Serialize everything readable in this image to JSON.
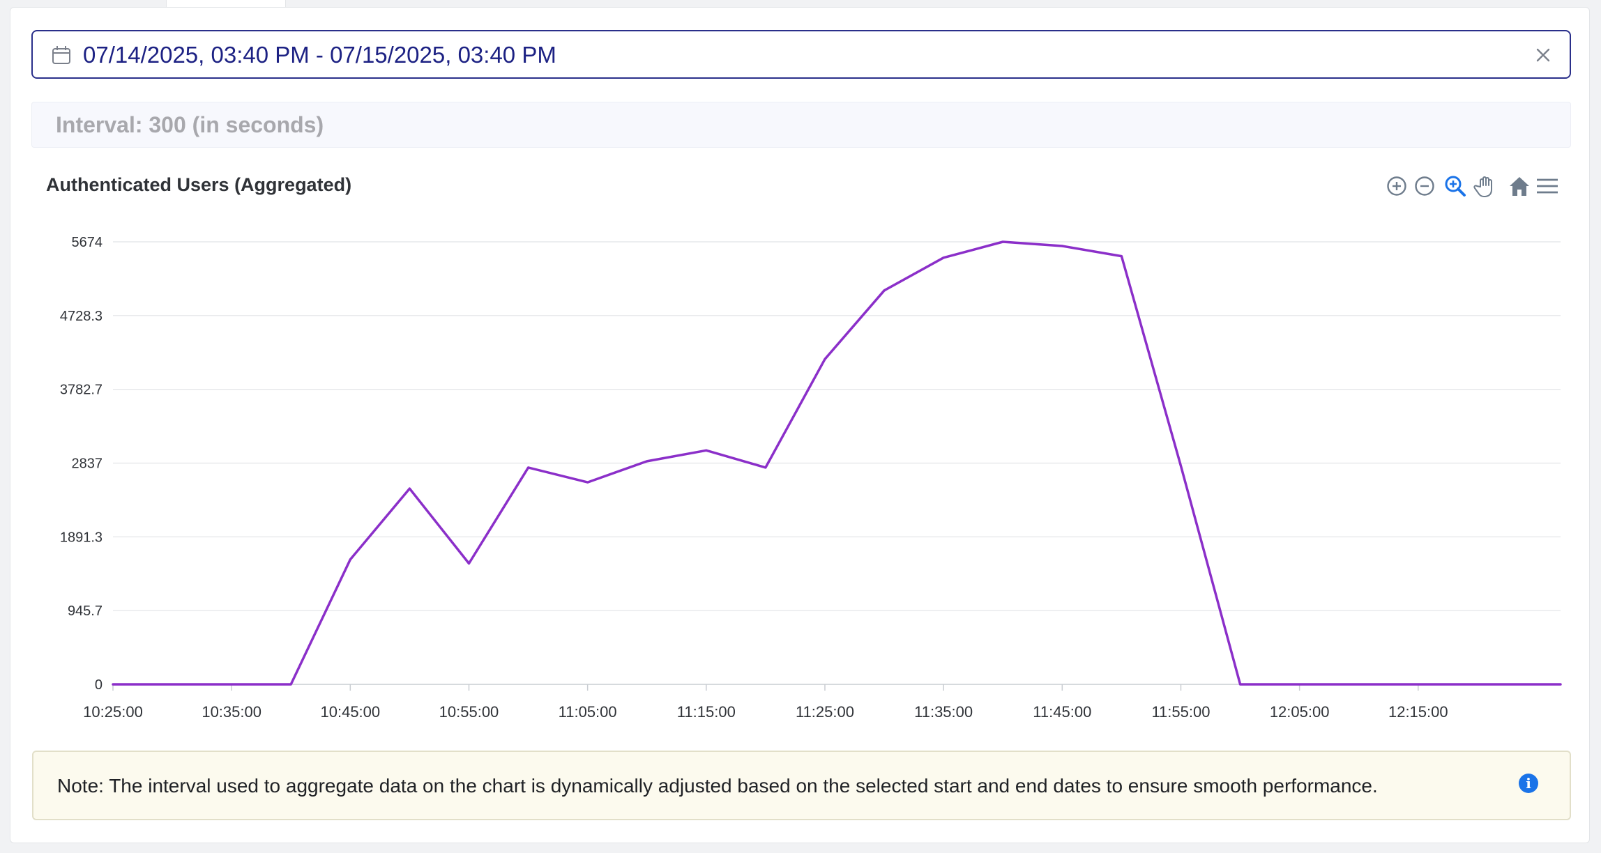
{
  "date_range": {
    "value": "07/14/2025, 03:40 PM - 07/15/2025, 03:40 PM",
    "icon": "calendar-icon",
    "clear_icon": "close-icon"
  },
  "interval": {
    "label": "Interval: 300 (in seconds)"
  },
  "chart_title": "Authenticated Users (Aggregated)",
  "toolbar": {
    "icons": [
      "zoom-in-icon",
      "zoom-out-icon",
      "selection-zoom-icon",
      "pan-hand-icon",
      "reset-home-icon",
      "menu-icon"
    ],
    "active_color": "#1a73e8",
    "icon_color": "#6e7c8c"
  },
  "colors": {
    "accent": "#1c2183",
    "series": "#8b2fc9",
    "note_bg": "#fcfaee"
  },
  "chart_data": {
    "type": "line",
    "title": "Authenticated Users (Aggregated)",
    "xlabel": "",
    "ylabel": "",
    "y_ticks": [
      "0",
      "945.7",
      "1891.3",
      "2837",
      "3782.7",
      "4728.3",
      "5674"
    ],
    "ylim": [
      0,
      5674
    ],
    "x_ticks": [
      "10:25:00",
      "10:35:00",
      "10:45:00",
      "10:55:00",
      "11:05:00",
      "11:15:00",
      "11:25:00",
      "11:35:00",
      "11:45:00",
      "11:55:00",
      "12:05:00",
      "12:15:00"
    ],
    "x_tick_minutes": [
      0,
      10,
      20,
      30,
      40,
      50,
      60,
      70,
      80,
      90,
      100,
      110
    ],
    "xlim_minutes": [
      0,
      122
    ],
    "grid": true,
    "series": [
      {
        "x_minutes": [
          0,
          5,
          10,
          15,
          20,
          25,
          30,
          35,
          40,
          45,
          50,
          55,
          60,
          65,
          70,
          75,
          80,
          85,
          90,
          95,
          100,
          105,
          110,
          115,
          122
        ],
        "values": [
          0,
          0,
          0,
          0,
          1600,
          2510,
          1550,
          2780,
          2590,
          2860,
          3000,
          2780,
          4170,
          5050,
          5470,
          5674,
          5620,
          5490,
          2800,
          0,
          0,
          0,
          0,
          0,
          0
        ]
      }
    ]
  },
  "note": {
    "text": "Note: The interval used to aggregate data on the chart is dynamically adjusted based on the selected start and end dates to ensure smooth performance.",
    "icon": "info-icon"
  }
}
